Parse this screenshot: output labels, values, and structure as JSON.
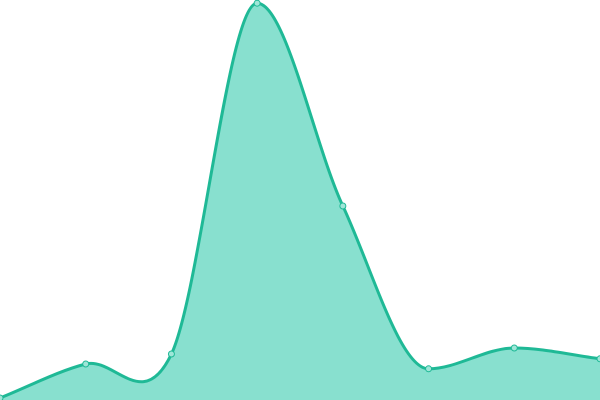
{
  "chart_data": {
    "type": "area",
    "x": [
      0,
      1,
      2,
      3,
      4,
      5,
      6,
      7
    ],
    "values": [
      0.5,
      9,
      11.5,
      99.2,
      48.5,
      7.8,
      13,
      10.3
    ],
    "ylim": [
      0,
      100
    ],
    "grid": false,
    "legend": "none",
    "colors": {
      "line": "#1fb996",
      "fill": "#88e0cf",
      "marker_fill": "#9fe6d8"
    }
  }
}
